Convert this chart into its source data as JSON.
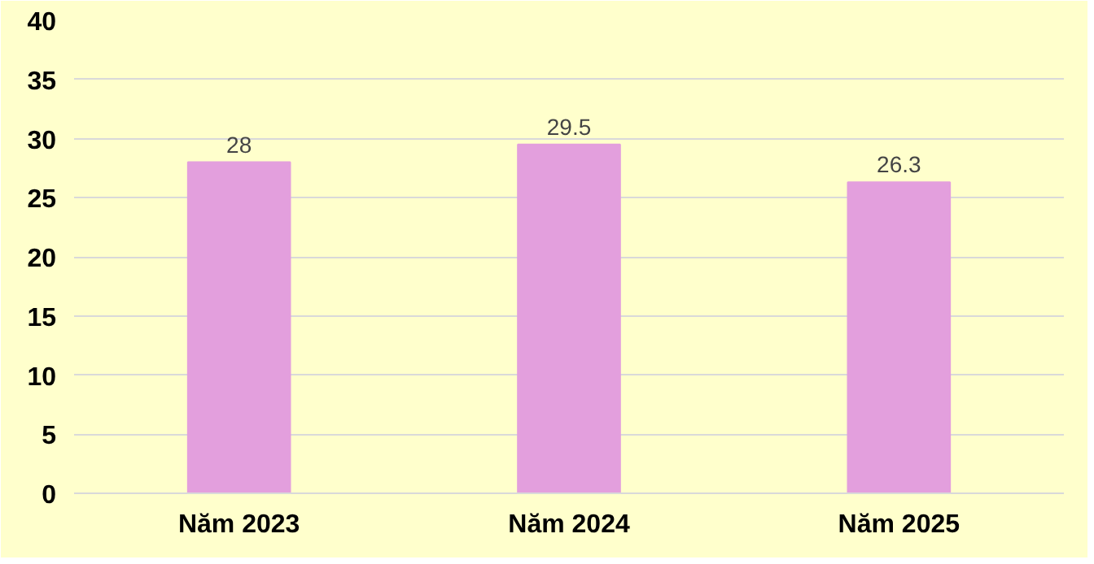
{
  "chart_data": {
    "type": "bar",
    "categories": [
      "Năm 2023",
      "Năm 2024",
      "Năm 2025"
    ],
    "values": [
      28,
      29.5,
      26.3
    ],
    "color": "#e39fdd",
    "ylim": [
      0,
      40
    ],
    "yticks": [
      0,
      5,
      10,
      15,
      20,
      25,
      30,
      35,
      40
    ],
    "grid": "y",
    "data_labels": true
  }
}
